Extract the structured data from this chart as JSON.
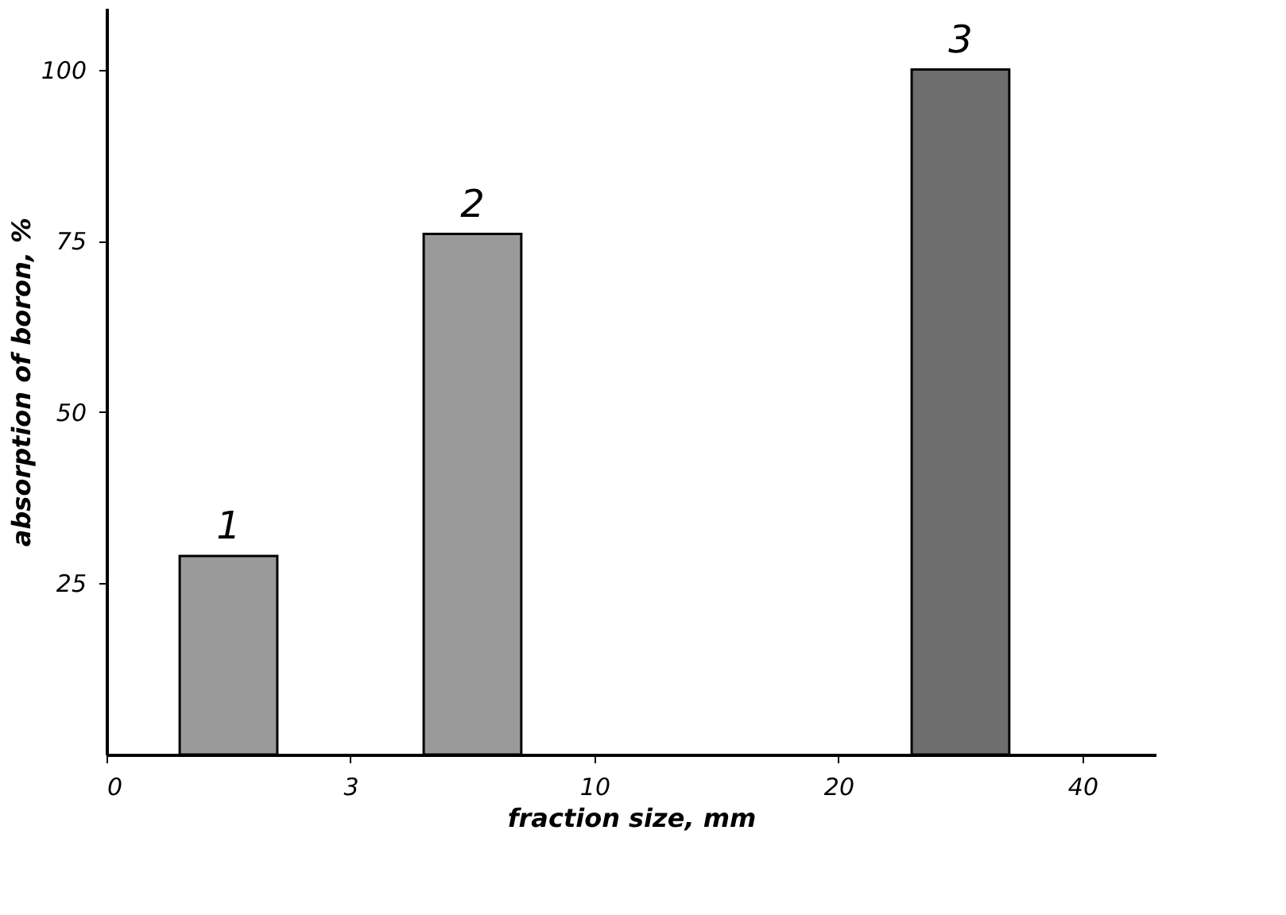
{
  "chart_data": {
    "type": "bar",
    "xlabel": "fraction size, mm",
    "ylabel": "absorption of boron, %",
    "categories": [
      null,
      null,
      null,
      null
    ],
    "values": [
      29,
      76,
      null,
      100
    ],
    "colors": [
      "#9a9a9a",
      "#9a9a9a",
      null,
      "#6e6e6e"
    ],
    "ylim": [
      0,
      109
    ],
    "yticks": [
      25,
      50,
      75,
      100
    ],
    "annotations": [
      "1",
      "2",
      "3",
      "0",
      "3",
      "10",
      "20",
      "40"
    ],
    "grid": false,
    "legend": false
  }
}
